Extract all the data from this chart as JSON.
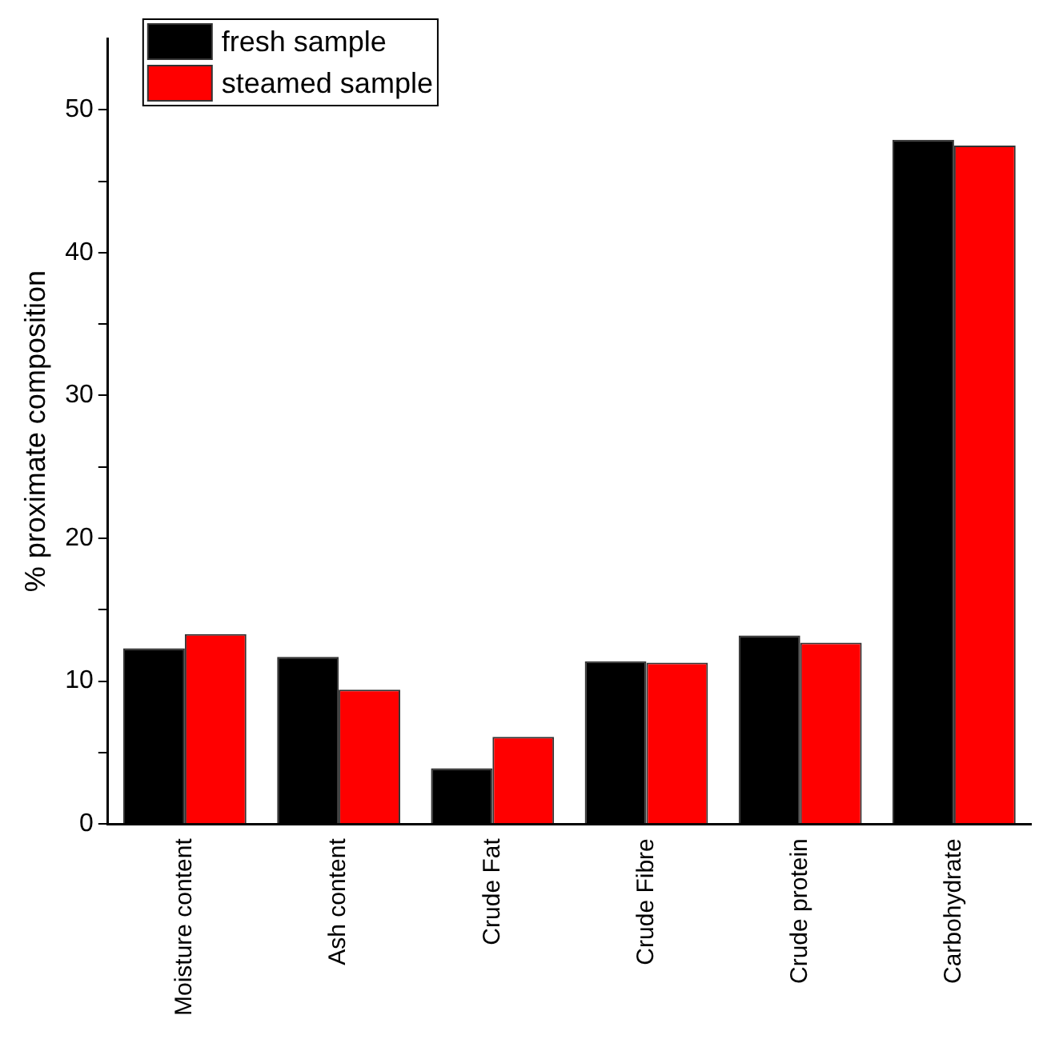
{
  "chart_data": {
    "type": "bar",
    "ylabel": "% proximate composition",
    "categories": [
      "Moisture content",
      "Ash content",
      "Crude Fat",
      "Crude Fibre",
      "Crude protein",
      "Carbohydrate"
    ],
    "series": [
      {
        "name": "fresh sample",
        "color": "#000000",
        "values": [
          12.3,
          11.7,
          3.9,
          11.4,
          13.2,
          47.9
        ]
      },
      {
        "name": "steamed sample",
        "color": "#ff0000",
        "values": [
          13.3,
          9.4,
          6.1,
          11.3,
          12.7,
          47.5
        ]
      }
    ],
    "ylim": [
      0,
      55
    ],
    "yticks": [
      0,
      {
        "value": 5,
        "label": null
      },
      10,
      {
        "value": 15,
        "label": null
      },
      20,
      {
        "value": 25,
        "label": null
      },
      30,
      {
        "value": 35,
        "label": null
      },
      40,
      {
        "value": 45,
        "label": null
      },
      50
    ],
    "grid": false,
    "legend": "top left"
  }
}
